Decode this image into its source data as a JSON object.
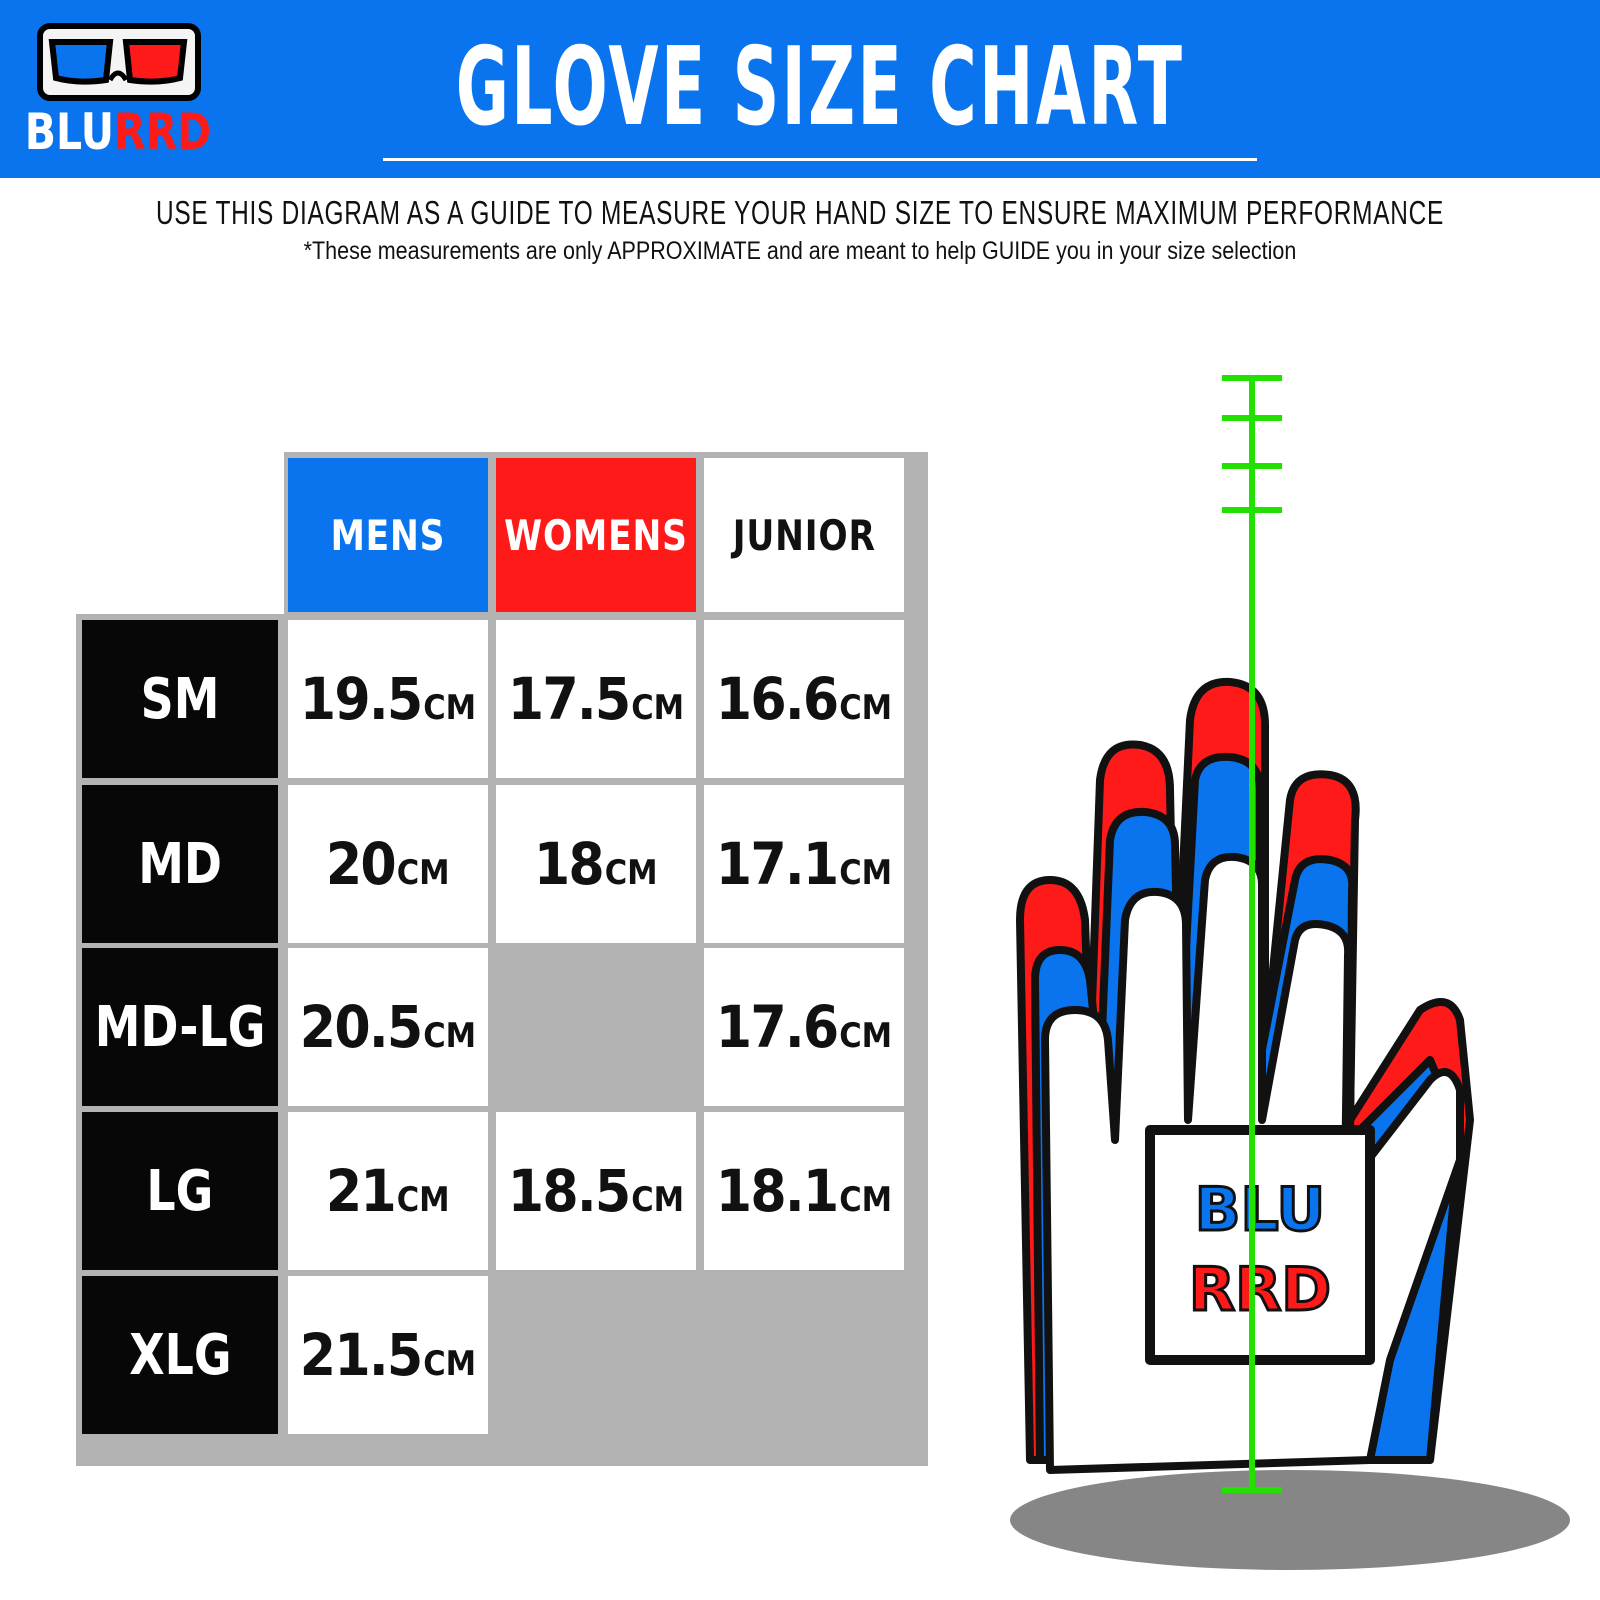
{
  "brand": {
    "logo_text_blue": "BLU",
    "logo_text_red": "RRD",
    "logo_icon": "3d-glasses-icon"
  },
  "header": {
    "title": "GLOVE SIZE CHART"
  },
  "subtitle": "USE THIS DIAGRAM AS A GUIDE TO MEASURE YOUR HAND SIZE TO ENSURE MAXIMUM PERFORMANCE",
  "disclaimer": "*These measurements are only APPROXIMATE and are meant to help GUIDE you in your size selection",
  "colors": {
    "blue": "#0a74ee",
    "red": "#ff1a1a",
    "black": "#070707",
    "gray": "#b3b3b3",
    "measure_line": "#22e000"
  },
  "table": {
    "unit": "CM",
    "columns": [
      {
        "label": "MENS",
        "bg": "#0a74ee",
        "fg": "#ffffff"
      },
      {
        "label": "WOMENS",
        "bg": "#ff1a1a",
        "fg": "#ffffff"
      },
      {
        "label": "JUNIOR",
        "bg": "#ffffff",
        "fg": "#111111"
      }
    ],
    "rows": [
      {
        "size": "SM",
        "values": [
          "19.5",
          "17.5",
          "16.6"
        ]
      },
      {
        "size": "MD",
        "values": [
          "20",
          "18",
          "17.1"
        ]
      },
      {
        "size": "MD-LG",
        "values": [
          "20.5",
          null,
          "17.6"
        ]
      },
      {
        "size": "LG",
        "values": [
          "21",
          "18.5",
          "18.1"
        ]
      },
      {
        "size": "XLG",
        "values": [
          "21.5",
          null,
          null
        ]
      }
    ]
  },
  "glove_logo": {
    "top": "BLU",
    "bottom": "RRD"
  }
}
